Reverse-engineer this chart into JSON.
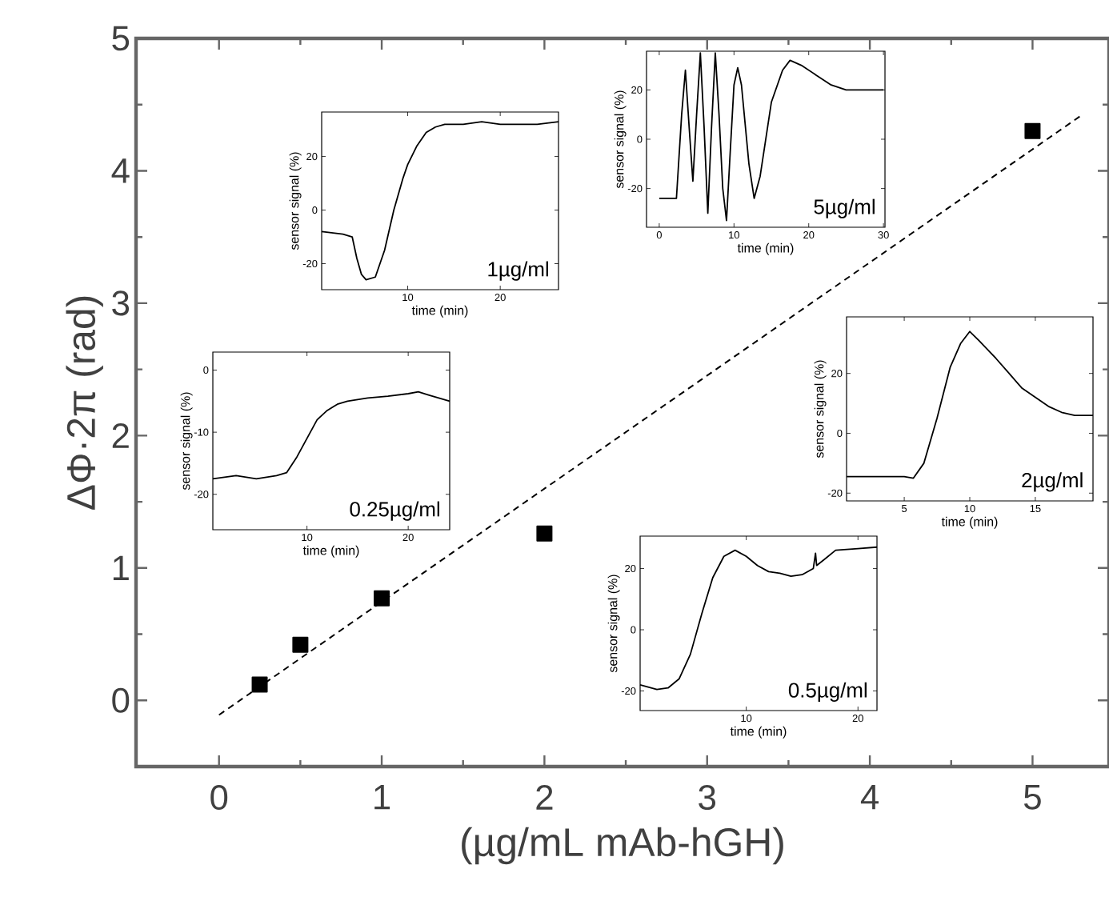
{
  "chart_data": [
    {
      "type": "scatter",
      "xlabel": "(µg/mL mAb-hGH)",
      "ylabel": "ΔΦ·2π (rad)",
      "xlim": [
        -0.51,
        5.47
      ],
      "ylim": [
        -0.5,
        5
      ],
      "xticks": [
        0,
        1,
        2,
        3,
        4,
        5
      ],
      "yticks": [
        0,
        1,
        2,
        3,
        4,
        5
      ],
      "grid": false,
      "series": [
        {
          "type": "scatter",
          "marker": "square",
          "color": "#000000",
          "x": [
            0.25,
            0.5,
            1,
            2,
            5
          ],
          "values": [
            0.12,
            0.42,
            0.77,
            1.26,
            4.3
          ]
        },
        {
          "type": "line",
          "line_style": "dashed",
          "color": "#000000",
          "x": [
            0,
            5.29
          ],
          "values": [
            -0.11,
            4.41
          ]
        }
      ]
    },
    {
      "type": "line",
      "xlabel": "time (min)",
      "ylabel": "sensor signal (%)",
      "xlim": [
        0.7,
        26.3
      ],
      "ylim": [
        -29.7,
        36.6
      ],
      "xticks": [
        10,
        20
      ],
      "yticks": [
        -20,
        0,
        20
      ],
      "annotations": [
        "1µg/ml"
      ],
      "series": [
        {
          "color": "#000000",
          "x": [
            0.7,
            3,
            4,
            4.5,
            5,
            5.5,
            6.5,
            7.5,
            8.5,
            9.5,
            10,
            11,
            12,
            13,
            14,
            16,
            18,
            20,
            22,
            24,
            26.3
          ],
          "values": [
            -8,
            -9,
            -10,
            -18,
            -24,
            -26,
            -25,
            -15,
            0,
            12,
            17,
            24,
            29,
            31,
            32,
            32,
            33,
            32,
            32,
            32,
            33
          ]
        }
      ]
    },
    {
      "type": "line",
      "xlabel": "time (min)",
      "ylabel": "sensor signal (%)",
      "xlim": [
        -1.7,
        30.2
      ],
      "ylim": [
        -35.7,
        35.7
      ],
      "xticks": [
        0,
        10,
        20,
        30
      ],
      "yticks": [
        -20,
        0,
        20
      ],
      "annotations": [
        "5µg/ml"
      ],
      "series": [
        {
          "color": "#000000",
          "x": [
            0,
            2.3,
            3,
            3.5,
            4,
            4.5,
            5,
            5.5,
            6,
            6.5,
            7,
            7.5,
            8,
            8.5,
            9,
            9.5,
            10,
            10.5,
            11,
            12,
            12.7,
            13.5,
            15,
            16.5,
            17.5,
            19,
            21,
            23,
            25,
            28,
            30
          ],
          "values": [
            -24,
            -24,
            10,
            28,
            5,
            -17,
            10,
            35,
            5,
            -30,
            5,
            35,
            10,
            -20,
            -33,
            -5,
            22,
            29,
            22,
            -10,
            -24,
            -15,
            15,
            28,
            32,
            30,
            26,
            22,
            20,
            20,
            20
          ]
        }
      ]
    },
    {
      "type": "line",
      "xlabel": "time (min)",
      "ylabel": "sensor signal (%)",
      "xlim": [
        0.7,
        24.1
      ],
      "ylim": [
        -25.7,
        2.9
      ],
      "xticks": [
        10,
        20
      ],
      "yticks": [
        -20,
        -10,
        0
      ],
      "annotations": [
        "0.25µg/ml"
      ],
      "series": [
        {
          "color": "#000000",
          "x": [
            0.7,
            3,
            5,
            7,
            8,
            9,
            10,
            11,
            12,
            13,
            14,
            16,
            18,
            20,
            21,
            22,
            24.1
          ],
          "values": [
            -17.5,
            -17,
            -17.5,
            -17,
            -16.5,
            -14,
            -11,
            -8,
            -6.5,
            -5.5,
            -5,
            -4.5,
            -4.2,
            -3.8,
            -3.5,
            -4,
            -5
          ]
        }
      ]
    },
    {
      "type": "line",
      "xlabel": "time (min)",
      "ylabel": "sensor signal (%)",
      "xlim": [
        0.6,
        19.4
      ],
      "ylim": [
        -22.6,
        38.9
      ],
      "xticks": [
        5,
        10,
        15
      ],
      "yticks": [
        -20,
        0,
        20
      ],
      "annotations": [
        "2µg/ml"
      ],
      "series": [
        {
          "color": "#000000",
          "x": [
            0.6,
            3,
            5,
            5.7,
            6.5,
            7.5,
            8.5,
            9.3,
            10,
            10.7,
            12,
            13,
            14,
            15,
            16,
            17,
            18,
            19.4
          ],
          "values": [
            -14.5,
            -14.5,
            -14.5,
            -15,
            -10,
            5,
            22,
            30,
            34,
            31,
            25,
            20,
            15,
            12,
            9,
            7,
            6,
            6
          ]
        }
      ]
    },
    {
      "type": "line",
      "xlabel": "time (min)",
      "ylabel": "sensor signal (%)",
      "xlim": [
        0.5,
        21.7
      ],
      "ylim": [
        -26.4,
        30.6
      ],
      "xticks": [
        10,
        20
      ],
      "yticks": [
        -20,
        0,
        20
      ],
      "annotations": [
        "0.5µg/ml"
      ],
      "series": [
        {
          "color": "#000000",
          "x": [
            0.5,
            2,
            3,
            4,
            5,
            6,
            7,
            8,
            9,
            10,
            11,
            12,
            13,
            14,
            15,
            16,
            16.2,
            16.3,
            17,
            18,
            20,
            21.7
          ],
          "values": [
            -18,
            -19.5,
            -19,
            -16,
            -8,
            5,
            17,
            24,
            26,
            24,
            21,
            19,
            18.5,
            17.5,
            18,
            20,
            25,
            21,
            23,
            26,
            26.5,
            27
          ]
        }
      ]
    }
  ]
}
